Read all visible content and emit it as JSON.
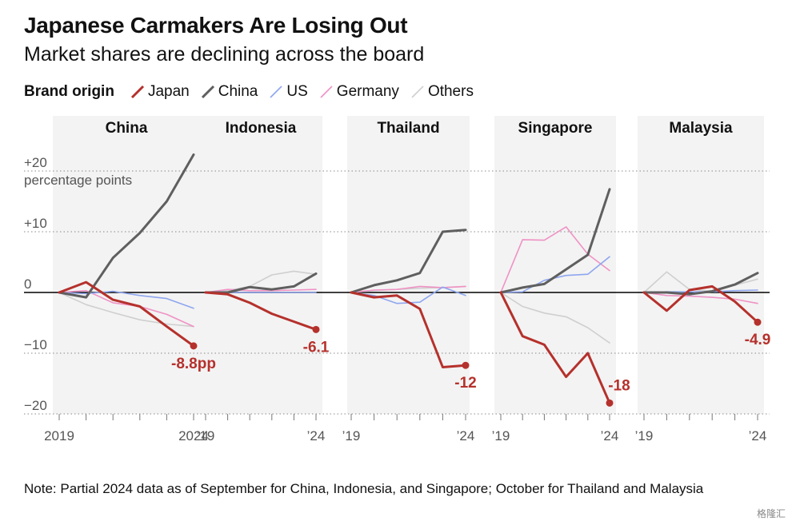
{
  "header": {
    "title": "Japanese Carmakers Are Losing Out",
    "subtitle": "Market shares are declining across the board"
  },
  "legend": {
    "title": "Brand origin",
    "items": [
      {
        "label": "Japan",
        "color": "#b5312c"
      },
      {
        "label": "China",
        "color": "#5f5f5f"
      },
      {
        "label": "US",
        "color": "#8ea6ef"
      },
      {
        "label": "Germany",
        "color": "#ef92c4"
      },
      {
        "label": "Others",
        "color": "#cfcfcf"
      }
    ]
  },
  "axis": {
    "y_ticks": [
      {
        "value": 20,
        "label": "+20"
      },
      {
        "value": 10,
        "label": "+10"
      },
      {
        "value": 0,
        "label": "0"
      },
      {
        "value": -10,
        "label": "−10"
      },
      {
        "value": -20,
        "label": "−20"
      }
    ],
    "y_unit": "percentage points"
  },
  "chart_data": {
    "type": "line",
    "ylim": [
      -22,
      24
    ],
    "ylabel": "percentage points",
    "x": [
      2019,
      2020,
      2021,
      2022,
      2023,
      2024
    ],
    "panels": [
      {
        "title": "China",
        "x_tick_labels": [
          "2019",
          "2024"
        ],
        "end_label": "-8.8pp",
        "series": [
          {
            "name": "Others",
            "values": [
              0,
              -2,
              -3.3,
              -4.5,
              -5.2,
              -5.6
            ]
          },
          {
            "name": "Germany",
            "values": [
              0,
              0.3,
              -1.7,
              -2.3,
              -3.6,
              -5.6
            ]
          },
          {
            "name": "US",
            "values": [
              0,
              -0.2,
              0.2,
              -0.5,
              -1,
              -2.6
            ]
          },
          {
            "name": "China",
            "values": [
              0,
              -0.8,
              5.7,
              9.8,
              15,
              22.7
            ]
          },
          {
            "name": "Japan",
            "values": [
              0,
              1.7,
              -1.2,
              -2.3,
              -5.6,
              -8.8
            ]
          }
        ]
      },
      {
        "title": "Indonesia",
        "x_tick_labels": [
          "’19",
          "’24"
        ],
        "end_label": "-6.1",
        "series": [
          {
            "name": "Others",
            "values": [
              0,
              0.3,
              1,
              2.9,
              3.5,
              3
            ]
          },
          {
            "name": "Germany",
            "values": [
              0,
              0.5,
              0.3,
              0.3,
              0.4,
              0.5
            ]
          },
          {
            "name": "US",
            "values": [
              0,
              0,
              0,
              0,
              0,
              0
            ]
          },
          {
            "name": "China",
            "values": [
              0,
              0,
              0.9,
              0.5,
              1,
              3.1
            ]
          },
          {
            "name": "Japan",
            "values": [
              0,
              -0.3,
              -1.7,
              -3.5,
              -4.8,
              -6.1
            ]
          }
        ]
      },
      {
        "title": "Thailand",
        "x_tick_labels": [
          "’19",
          "’24"
        ],
        "end_label": "-12",
        "series": [
          {
            "name": "Others",
            "values": [
              0,
              0.3,
              0.5,
              0.7,
              0.8,
              1
            ]
          },
          {
            "name": "Germany",
            "values": [
              0,
              0.4,
              0.5,
              1,
              0.8,
              1
            ]
          },
          {
            "name": "US",
            "values": [
              0,
              -0.5,
              -1.8,
              -1.6,
              0.9,
              -0.5
            ]
          },
          {
            "name": "China",
            "values": [
              0,
              1.2,
              2,
              3.2,
              10,
              10.3
            ]
          },
          {
            "name": "Japan",
            "values": [
              0,
              -0.8,
              -0.5,
              -2.7,
              -12.3,
              -12
            ]
          }
        ]
      },
      {
        "title": "Singapore",
        "x_tick_labels": [
          "’19",
          "’24"
        ],
        "end_label": "-18",
        "series": [
          {
            "name": "Others",
            "values": [
              0,
              -2.3,
              -3.4,
              -4,
              -5.8,
              -8.3
            ]
          },
          {
            "name": "Germany",
            "values": [
              0,
              8.7,
              8.6,
              10.8,
              6.3,
              3.6
            ]
          },
          {
            "name": "US",
            "values": [
              0,
              0.1,
              2,
              2.8,
              3,
              5.9
            ]
          },
          {
            "name": "China",
            "values": [
              0,
              0.8,
              1.4,
              3.8,
              6.2,
              17
            ]
          },
          {
            "name": "Japan",
            "values": [
              0,
              -7.2,
              -8.6,
              -13.9,
              -10,
              -18.2
            ]
          }
        ]
      },
      {
        "title": "Malaysia",
        "x_tick_labels": [
          "’19",
          "’24"
        ],
        "end_label": "-4.9",
        "series": [
          {
            "name": "Others",
            "values": [
              0,
              3.4,
              0.5,
              0.2,
              1.2,
              2.2
            ]
          },
          {
            "name": "Germany",
            "values": [
              0,
              -0.5,
              -0.6,
              -0.8,
              -1.1,
              -1.8
            ]
          },
          {
            "name": "US",
            "values": [
              0,
              0.1,
              0.1,
              0.1,
              0.3,
              0.4
            ]
          },
          {
            "name": "China",
            "values": [
              0,
              0,
              -0.3,
              0.2,
              1.3,
              3.2
            ]
          },
          {
            "name": "Japan",
            "values": [
              0,
              -3,
              0.4,
              1,
              -1.5,
              -4.9
            ]
          }
        ]
      }
    ]
  },
  "note": "Note: Partial 2024 data as of September for China, Indonesia, and Singapore; October for Thailand and Malaysia",
  "watermark": "格隆汇"
}
